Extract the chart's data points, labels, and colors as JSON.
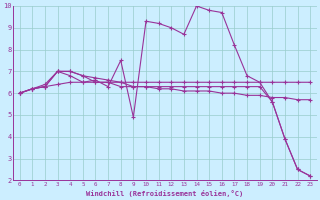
{
  "xlabel": "Windchill (Refroidissement éolien,°C)",
  "bg_color": "#cceeff",
  "line_color": "#993399",
  "grid_color": "#99cccc",
  "xlim": [
    -0.5,
    23.5
  ],
  "ylim": [
    2,
    10
  ],
  "yticks": [
    2,
    3,
    4,
    5,
    6,
    7,
    8,
    9,
    10
  ],
  "xticks": [
    0,
    1,
    2,
    3,
    4,
    5,
    6,
    7,
    8,
    9,
    10,
    11,
    12,
    13,
    14,
    15,
    16,
    17,
    18,
    19,
    20,
    21,
    22,
    23
  ],
  "series": [
    {
      "x": [
        0,
        1,
        2,
        3,
        4,
        5,
        6,
        7,
        8,
        9,
        10,
        11,
        12,
        13,
        14,
        15,
        16,
        17,
        18,
        19,
        20,
        21,
        22,
        23
      ],
      "y": [
        6.0,
        6.2,
        6.3,
        7.0,
        6.8,
        6.5,
        6.6,
        6.3,
        7.5,
        4.9,
        9.3,
        9.2,
        9.0,
        8.7,
        10.0,
        9.8,
        9.7,
        8.2,
        6.8,
        6.5,
        5.6,
        3.9,
        2.5,
        2.2
      ]
    },
    {
      "x": [
        0,
        1,
        2,
        3,
        4,
        5,
        6,
        7,
        8,
        9,
        10,
        11,
        12,
        13,
        14,
        15,
        16,
        17,
        18,
        19,
        20,
        21,
        22,
        23
      ],
      "y": [
        6.0,
        6.2,
        6.3,
        6.4,
        6.5,
        6.5,
        6.5,
        6.5,
        6.5,
        6.5,
        6.5,
        6.5,
        6.5,
        6.5,
        6.5,
        6.5,
        6.5,
        6.5,
        6.5,
        6.5,
        6.5,
        6.5,
        6.5,
        6.5
      ]
    },
    {
      "x": [
        0,
        1,
        2,
        3,
        4,
        5,
        6,
        7,
        8,
        9,
        10,
        11,
        12,
        13,
        14,
        15,
        16,
        17,
        18,
        19,
        20,
        21,
        22,
        23
      ],
      "y": [
        6.0,
        6.2,
        6.4,
        7.0,
        7.0,
        6.8,
        6.7,
        6.6,
        6.5,
        6.3,
        6.3,
        6.2,
        6.2,
        6.1,
        6.1,
        6.1,
        6.0,
        6.0,
        5.9,
        5.9,
        5.8,
        5.8,
        5.7,
        5.7
      ]
    },
    {
      "x": [
        0,
        1,
        2,
        3,
        4,
        5,
        6,
        7,
        8,
        9,
        10,
        11,
        12,
        13,
        14,
        15,
        16,
        17,
        18,
        19,
        20,
        21,
        22,
        23
      ],
      "y": [
        6.0,
        6.2,
        6.3,
        7.0,
        7.0,
        6.8,
        6.5,
        6.5,
        6.3,
        6.3,
        6.3,
        6.3,
        6.3,
        6.3,
        6.3,
        6.3,
        6.3,
        6.3,
        6.3,
        6.3,
        5.6,
        3.9,
        2.5,
        2.2
      ]
    }
  ]
}
